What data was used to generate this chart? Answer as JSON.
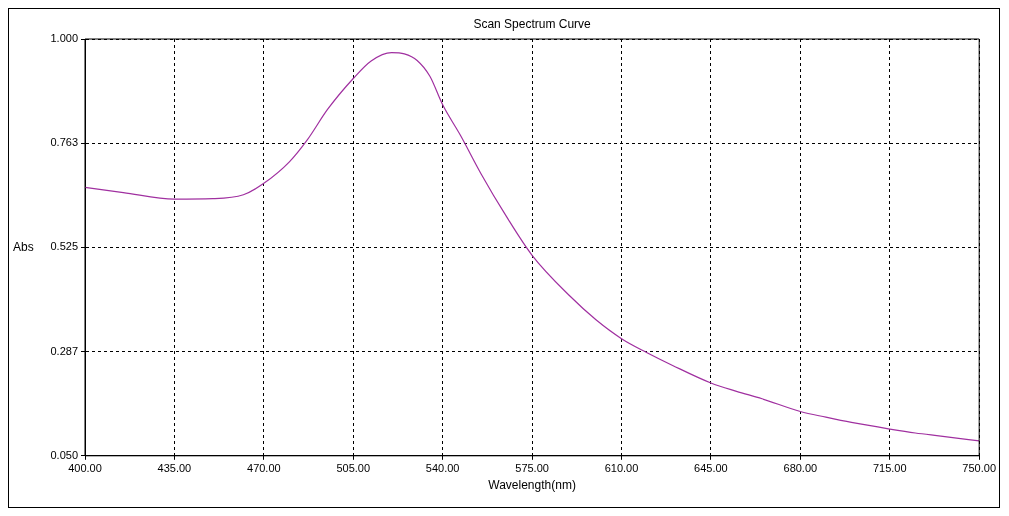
{
  "chart_data": {
    "type": "line",
    "title": "Scan Spectrum Curve",
    "xlabel": "Wavelength(nm)",
    "ylabel": "Abs",
    "series": [
      {
        "color": "#a030a0",
        "x": [
          400,
          415,
          435,
          450,
          462,
          470,
          480,
          487,
          495,
          505,
          512,
          520,
          525,
          530,
          535,
          540,
          547,
          555,
          565,
          575,
          590,
          600,
          610,
          620,
          630,
          645,
          655,
          665,
          680,
          690,
          700,
          715,
          725,
          735,
          750
        ],
        "values": [
          0.662,
          0.65,
          0.635,
          0.636,
          0.645,
          0.671,
          0.72,
          0.77,
          0.84,
          0.91,
          0.95,
          0.969,
          0.966,
          0.951,
          0.915,
          0.85,
          0.78,
          0.693,
          0.595,
          0.507,
          0.413,
          0.36,
          0.317,
          0.285,
          0.256,
          0.216,
          0.197,
          0.18,
          0.151,
          0.138,
          0.126,
          0.111,
          0.102,
          0.095,
          0.084
        ]
      }
    ],
    "xlim": [
      400,
      750
    ],
    "xticks": [
      {
        "value": 400,
        "label": "400.00"
      },
      {
        "value": 435,
        "label": "435.00"
      },
      {
        "value": 470,
        "label": "470.00"
      },
      {
        "value": 505,
        "label": "505.00"
      },
      {
        "value": 540,
        "label": "540.00"
      },
      {
        "value": 575,
        "label": "575.00"
      },
      {
        "value": 610,
        "label": "610.00"
      },
      {
        "value": 645,
        "label": "645.00"
      },
      {
        "value": 680,
        "label": "680.00"
      },
      {
        "value": 715,
        "label": "715.00"
      },
      {
        "value": 750,
        "label": "750.00"
      }
    ],
    "ylim": [
      0.05,
      1
    ],
    "yticks": [
      {
        "value": 0.05,
        "label": "0.050"
      },
      {
        "value": 0.2875,
        "label": "0.287"
      },
      {
        "value": 0.525,
        "label": "0.525"
      },
      {
        "value": 0.7625,
        "label": "0.763"
      },
      {
        "value": 1,
        "label": "1.000"
      }
    ],
    "grid": true,
    "legend": false,
    "marker": "none",
    "line_style": "solid"
  }
}
